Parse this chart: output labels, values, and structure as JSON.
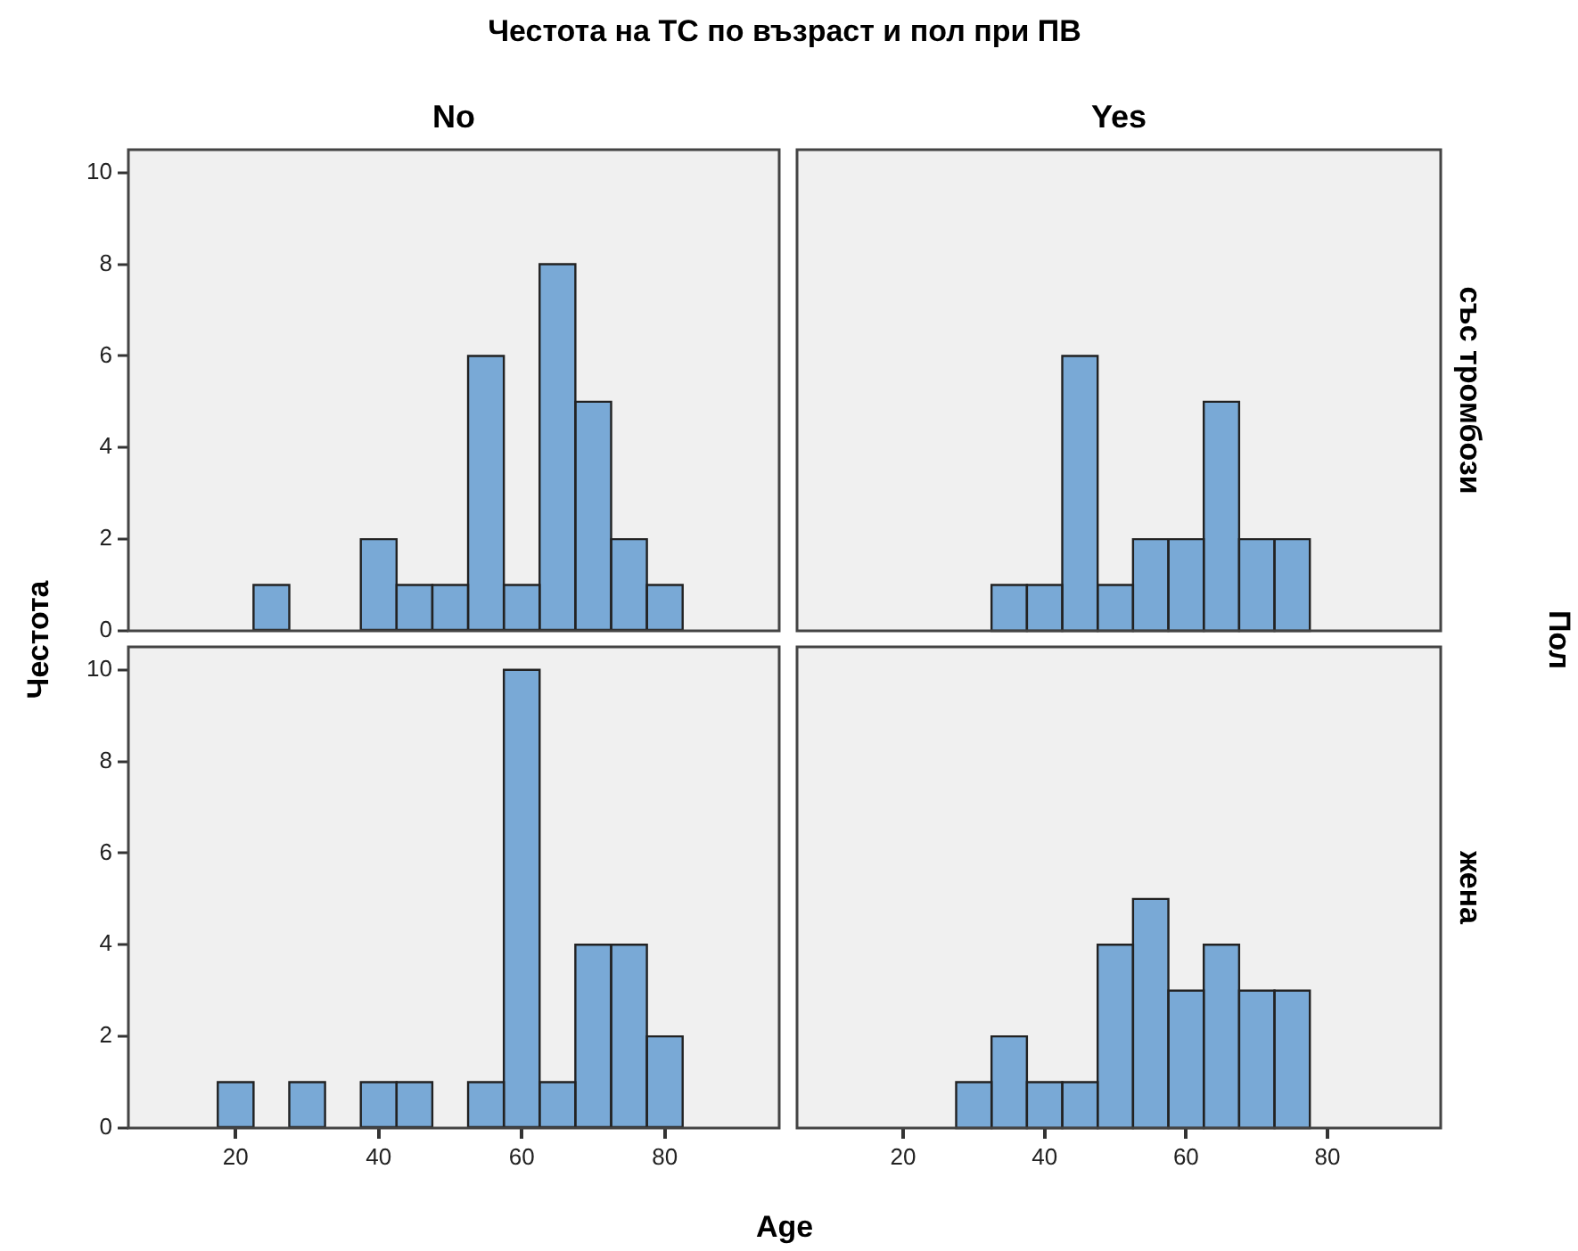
{
  "chart_data": [
    {
      "type": "histogram",
      "title": "No",
      "annotations": [
        "Честота на ТС по възраст и пол при ПВ"
      ],
      "ylabel": "Честота",
      "bins": [
        22.5,
        27.5,
        32.5,
        37.5,
        42.5,
        47.5,
        52.5,
        57.5,
        62.5,
        67.5,
        72.5,
        77.5,
        82.5
      ],
      "values": [
        1,
        0,
        0,
        2,
        1,
        1,
        6,
        1,
        8,
        5,
        2,
        1
      ],
      "color": "#79a9d6",
      "xlim": [
        5,
        96
      ],
      "xticks": [
        20,
        40,
        60,
        80
      ],
      "ylim": [
        0,
        10.5
      ],
      "yticks": [
        0,
        2,
        4,
        6,
        8,
        10
      ],
      "tick_labels": "y"
    },
    {
      "type": "histogram",
      "title": "Yes",
      "y2label": "със тромбози",
      "annotations": [
        "Пол"
      ],
      "bins": [
        32.5,
        37.5,
        42.5,
        47.5,
        52.5,
        57.5,
        62.5,
        67.5,
        72.5,
        77.5
      ],
      "values": [
        1,
        1,
        6,
        1,
        2,
        2,
        5,
        2,
        2
      ],
      "color": "#79a9d6",
      "xlim": [
        5,
        96
      ],
      "xticks": [
        20,
        40,
        60,
        80
      ],
      "ylim": [
        0,
        10.5
      ],
      "yticks": [
        0,
        2,
        4,
        6,
        8,
        10
      ],
      "tick_labels": false
    },
    {
      "type": "histogram",
      "xlabel": "Age",
      "bins": [
        17.5,
        22.5,
        27.5,
        32.5,
        37.5,
        42.5,
        47.5,
        52.5,
        57.5,
        62.5,
        67.5,
        72.5,
        77.5,
        82.5
      ],
      "values": [
        1,
        0,
        1,
        0,
        1,
        1,
        0,
        1,
        10,
        1,
        4,
        4,
        2
      ],
      "color": "#79a9d6",
      "xlim": [
        5,
        96
      ],
      "xticks": [
        20,
        40,
        60,
        80
      ],
      "ylim": [
        0,
        10.5
      ],
      "yticks": [
        0,
        2,
        4,
        6,
        8,
        10
      ]
    },
    {
      "type": "histogram",
      "y2label": "жена",
      "bins": [
        27.5,
        32.5,
        37.5,
        42.5,
        47.5,
        52.5,
        57.5,
        62.5,
        67.5,
        72.5,
        77.5
      ],
      "values": [
        1,
        2,
        1,
        1,
        4,
        5,
        3,
        4,
        3,
        3
      ],
      "color": "#79a9d6",
      "xlim": [
        5,
        96
      ],
      "xticks": [
        20,
        40,
        60,
        80
      ],
      "ylim": [
        0,
        10.5
      ],
      "yticks": [
        0,
        2,
        4,
        6,
        8,
        10
      ],
      "tick_labels": "x"
    }
  ]
}
